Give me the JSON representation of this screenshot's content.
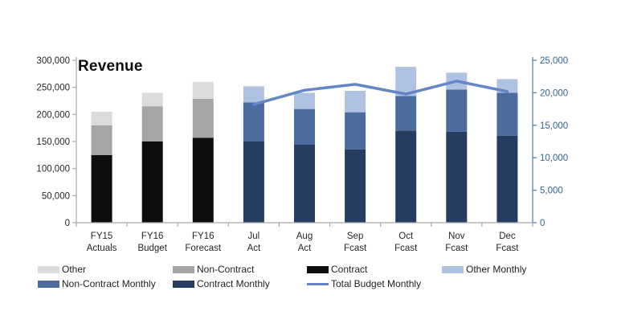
{
  "page": {
    "background": "#FFFFFF"
  },
  "chart_data": {
    "type": "combo-stacked-bar-line",
    "title": "Revenue",
    "gridlines": false,
    "legend_position": "bottom",
    "categories": [
      {
        "line1": "FY15",
        "line2": "Actuals"
      },
      {
        "line1": "FY16",
        "line2": "Budget"
      },
      {
        "line1": "FY16",
        "line2": "Forecast"
      },
      {
        "line1": "Jul",
        "line2": "Act"
      },
      {
        "line1": "Aug",
        "line2": "Act"
      },
      {
        "line1": "Sep",
        "line2": "Fcast"
      },
      {
        "line1": "Oct",
        "line2": "Fcast"
      },
      {
        "line1": "Nov",
        "line2": "Fcast"
      },
      {
        "line1": "Dec",
        "line2": "Fcast"
      }
    ],
    "left_axis": {
      "min": 0,
      "max": 300000,
      "step": 50000,
      "tick_labels": [
        "300,000",
        "250,000",
        "200,000",
        "150,000",
        "100,000",
        "50,000",
        "0"
      ],
      "text_color": "#262626",
      "line_color": "#A8A8A8"
    },
    "right_axis": {
      "min": 0,
      "max": 25000,
      "step": 5000,
      "tick_labels": [
        "25,000",
        "20,000",
        "15,000",
        "10,000",
        "5,000",
        "0"
      ],
      "text_color": "#31639C",
      "line_color": "#4B7DB0"
    },
    "x_axis": {
      "line_color": "#A8A8A8",
      "text_color": "#262626"
    },
    "series": [
      {
        "name": "Contract",
        "type": "bar",
        "axis": "left",
        "color": "#0D0D0D",
        "values": [
          125000,
          150000,
          157000,
          null,
          null,
          null,
          null,
          null,
          null
        ]
      },
      {
        "name": "Non-Contract",
        "type": "bar",
        "axis": "left",
        "color": "#A5A5A5",
        "values": [
          55000,
          65000,
          72000,
          null,
          null,
          null,
          null,
          null,
          null
        ]
      },
      {
        "name": "Other",
        "type": "bar",
        "axis": "left",
        "color": "#DBDBDB",
        "values": [
          25000,
          25000,
          31000,
          null,
          null,
          null,
          null,
          null,
          null
        ]
      },
      {
        "name": "Contract Monthly",
        "type": "bar",
        "axis": "right",
        "color": "#263C60",
        "values": [
          null,
          null,
          null,
          12500,
          12000,
          11300,
          14200,
          14000,
          13400
        ]
      },
      {
        "name": "Non-Contract Monthly",
        "type": "bar",
        "axis": "right",
        "color": "#4C6C9E",
        "values": [
          null,
          null,
          null,
          6000,
          5500,
          5700,
          5300,
          6500,
          6600
        ]
      },
      {
        "name": "Other Monthly",
        "type": "bar",
        "axis": "right",
        "color": "#AFC2E1",
        "values": [
          null,
          null,
          null,
          2500,
          2500,
          3300,
          4500,
          2600,
          2100
        ]
      },
      {
        "name": "Total Budget Monthly",
        "type": "line",
        "axis": "right",
        "color": "#6486C6",
        "values": [
          null,
          null,
          null,
          18200,
          20400,
          21300,
          19800,
          21800,
          20200
        ]
      }
    ],
    "legend": {
      "rows": [
        [
          {
            "label": "Other",
            "swatch": "bar",
            "color": "#DBDBDB"
          },
          {
            "label": "Non-Contract",
            "swatch": "bar",
            "color": "#A5A5A5"
          },
          {
            "label": "Contract",
            "swatch": "bar",
            "color": "#0D0D0D"
          },
          {
            "label": "Other Monthly",
            "swatch": "bar",
            "color": "#AFC2E1"
          }
        ],
        [
          {
            "label": "Non-Contract Monthly",
            "swatch": "bar",
            "color": "#4C6C9E"
          },
          {
            "label": "Contract Monthly",
            "swatch": "bar",
            "color": "#263C60"
          },
          {
            "label": "Total Budget Monthly",
            "swatch": "line",
            "color": "#6486C6"
          }
        ]
      ]
    }
  }
}
